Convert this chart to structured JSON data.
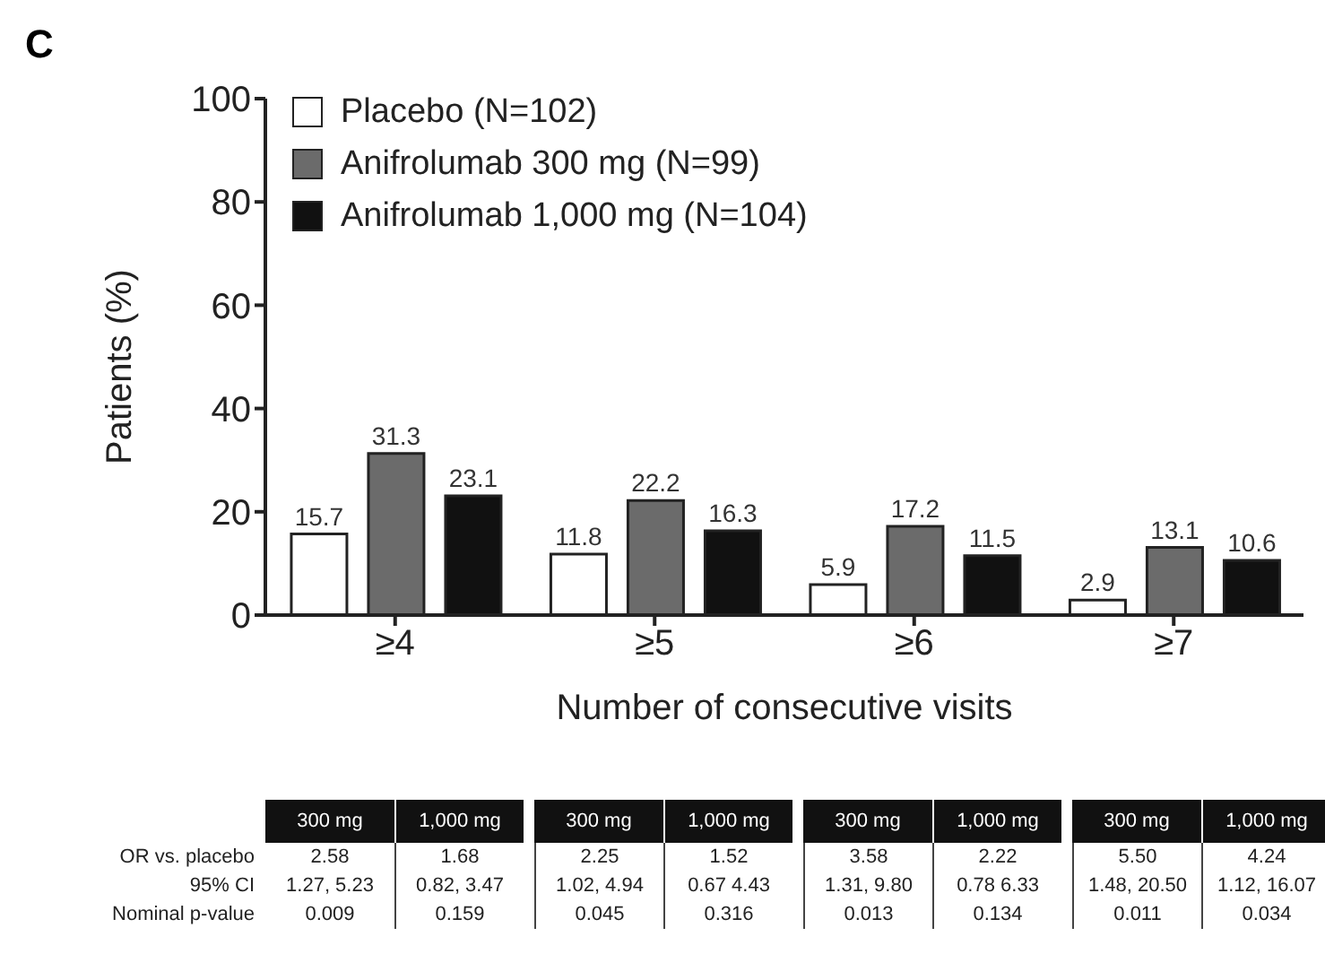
{
  "chart_data": {
    "type": "bar",
    "title": "C",
    "categories": [
      "≥4",
      "≥5",
      "≥6",
      "≥7"
    ],
    "series": [
      {
        "name": "Placebo (N=102)",
        "color": "#ffffff",
        "values": [
          15.7,
          11.8,
          5.9,
          2.9
        ]
      },
      {
        "name": "Anifrolumab 300 mg (N=99)",
        "color": "#6b6b6b",
        "values": [
          31.3,
          22.2,
          17.2,
          13.1
        ]
      },
      {
        "name": "Anifrolumab 1,000 mg (N=104)",
        "color": "#111111",
        "values": [
          23.1,
          16.3,
          11.5,
          10.6
        ]
      }
    ],
    "ylim": [
      0,
      100
    ],
    "yticks": [
      0,
      20,
      40,
      60,
      80,
      100
    ],
    "ylabel": "Patients (%)",
    "xlabel": "Number of consecutive visits",
    "grid": false,
    "legend": "top left",
    "data_labels": true,
    "annotations": [
      "300 mg",
      "1,000 mg",
      "300 mg",
      "1,000 mg",
      "300 mg",
      "1,000 mg",
      "300 mg",
      "1,000 mg",
      "OR vs. placebo",
      "2.58",
      "1.68",
      "2.25",
      "1.52",
      "3.58",
      "2.22",
      "5.50",
      "4.24",
      "95% CI",
      "1.27, 5.23",
      "0.82, 3.47",
      "1.02, 4.94",
      "0.67 4.43",
      "1.31, 9.80",
      "0.78 6.33",
      "1.48, 20.50",
      "1.12, 16.07",
      "Nominal p-value",
      "0.009",
      "0.159",
      "0.045",
      "0.316",
      "0.013",
      "0.134",
      "0.011",
      "0.034"
    ]
  }
}
